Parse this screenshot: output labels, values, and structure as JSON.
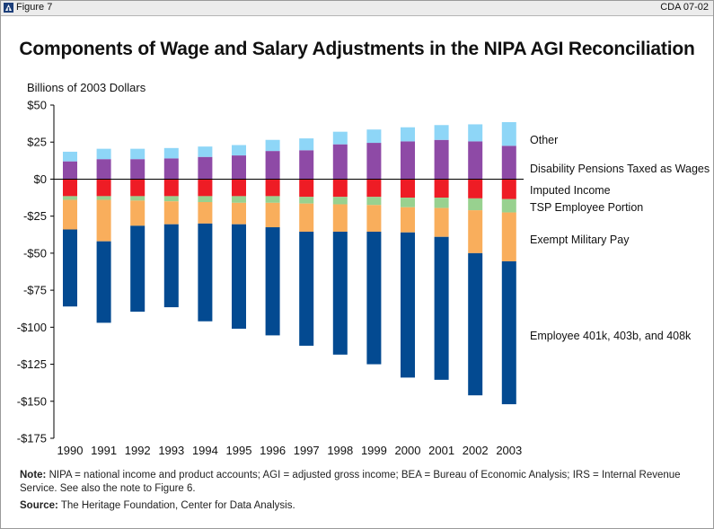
{
  "header": {
    "figure_label": "Figure 7",
    "code": "CDA 07-02"
  },
  "chart_data": {
    "type": "bar",
    "stacked": true,
    "title": "Components of Wage and Salary Adjustments in the NIPA AGI Reconciliation",
    "ylabel": "Billions of 2003 Dollars",
    "xlabel": "",
    "ylim": [
      -175,
      50
    ],
    "yticks": [
      50,
      25,
      0,
      -25,
      -50,
      -75,
      -100,
      -125,
      -150,
      -175
    ],
    "ytick_labels": [
      "$50",
      "$25",
      "$0",
      "-$25",
      "-$50",
      "-$75",
      "-$100",
      "-$125",
      "-$150",
      "-$175"
    ],
    "grid": false,
    "legend": "right, labels aligned with 2003 bar",
    "categories": [
      "1990",
      "1991",
      "1992",
      "1993",
      "1994",
      "1995",
      "1996",
      "1997",
      "1998",
      "1999",
      "2000",
      "2001",
      "2002",
      "2003"
    ],
    "series": [
      {
        "name": "Other",
        "color": "#8e4aa6",
        "values": [
          12,
          13.5,
          13.5,
          14,
          15,
          16,
          19,
          19.5,
          23.5,
          24.5,
          25.5,
          26.5,
          25.5,
          22.5
        ]
      },
      {
        "name": "Disability Pensions Taxed as Wages",
        "color": "#8ed6f7",
        "values": [
          6.5,
          7,
          7,
          7,
          7,
          7,
          7.5,
          8,
          8.5,
          9,
          9.5,
          10,
          11.5,
          16
        ]
      },
      {
        "name": "Imputed Income",
        "color": "#ee1c25",
        "values": [
          -11.5,
          -11.5,
          -11.5,
          -11.5,
          -11.5,
          -11.5,
          -11.5,
          -12,
          -12,
          -12,
          -12.5,
          -12.5,
          -13,
          -13.5
        ]
      },
      {
        "name": "TSP Employee Portion",
        "color": "#98d18f",
        "values": [
          -2.5,
          -2.5,
          -3,
          -3.5,
          -4,
          -4.5,
          -4.5,
          -4.5,
          -5,
          -5.5,
          -6.5,
          -7,
          -8,
          -9
        ]
      },
      {
        "name": "Exempt Military Pay",
        "color": "#f9ae5c",
        "values": [
          -20,
          -28,
          -17,
          -15.5,
          -14.5,
          -14.5,
          -16.5,
          -19,
          -18.5,
          -18,
          -17,
          -19.5,
          -29,
          -33
        ]
      },
      {
        "name": "Employee 401k, 403b, and 408k",
        "color": "#034a91",
        "values": [
          -52,
          -55,
          -58,
          -56,
          -66,
          -70.5,
          -73,
          -77,
          -83,
          -89.5,
          -98,
          -96.5,
          -96,
          -96.5
        ]
      }
    ]
  },
  "notes": {
    "note_lead": "Note:",
    "note_text": "NIPA = national income and product accounts; AGI = adjusted gross income; BEA = Bureau of Economic Analysis; IRS = Internal Revenue Service. See also the note to Figure 6.",
    "source_lead": "Source:",
    "source_text": "The Heritage Foundation, Center for Data Analysis."
  }
}
